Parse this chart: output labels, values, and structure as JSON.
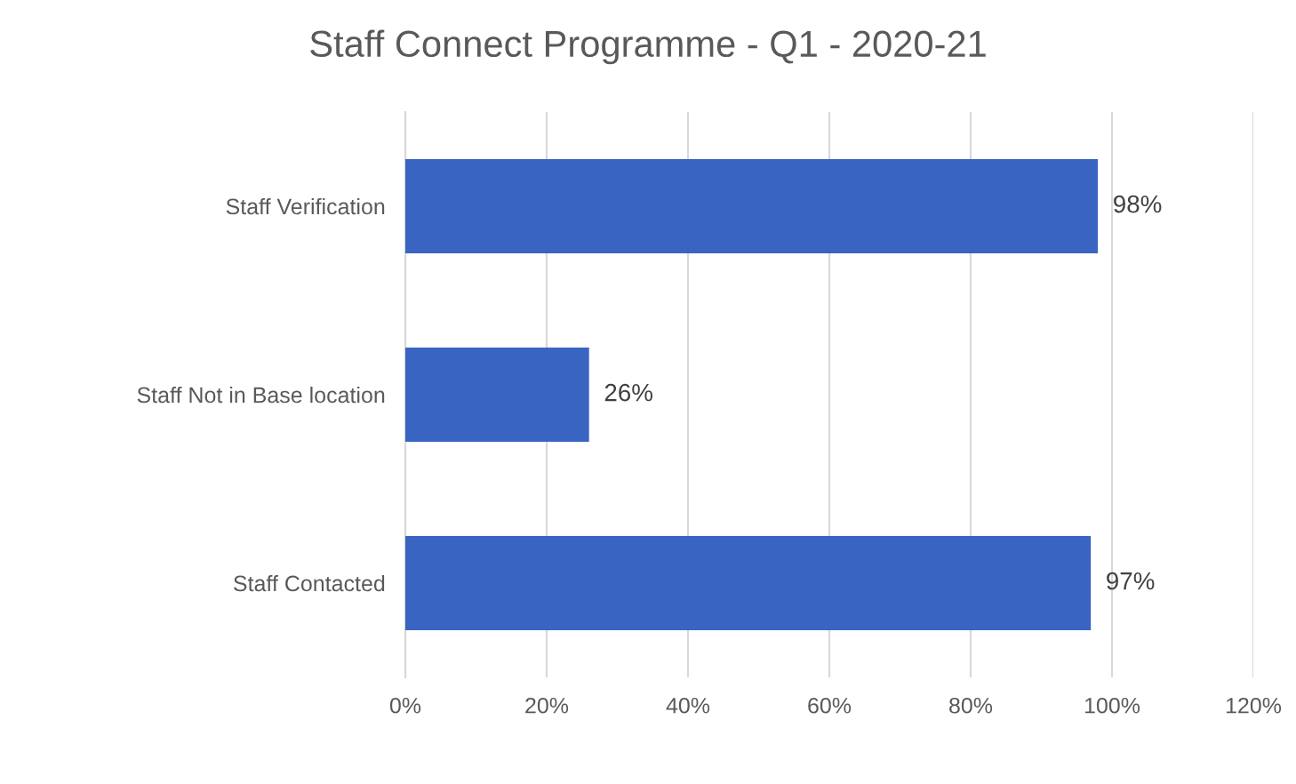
{
  "chart_data": {
    "type": "bar",
    "orientation": "horizontal",
    "title": "Staff Connect Programme - Q1 - 2020-21",
    "categories": [
      "Staff Verification",
      "Staff Not in Base location",
      "Staff Contacted"
    ],
    "values": [
      98,
      26,
      97
    ],
    "value_labels": [
      "98%",
      "26%",
      "97%"
    ],
    "color": "#3a64c2",
    "xlim": [
      0,
      120
    ],
    "xticks": [
      {
        "value": 0,
        "label": "0%"
      },
      {
        "value": 20,
        "label": "20%"
      },
      {
        "value": 40,
        "label": "40%"
      },
      {
        "value": 60,
        "label": "60%"
      },
      {
        "value": 80,
        "label": "80%"
      },
      {
        "value": 100,
        "label": "100%"
      },
      {
        "value": 120,
        "label": "120%"
      }
    ],
    "grid": "x",
    "legend": false
  }
}
